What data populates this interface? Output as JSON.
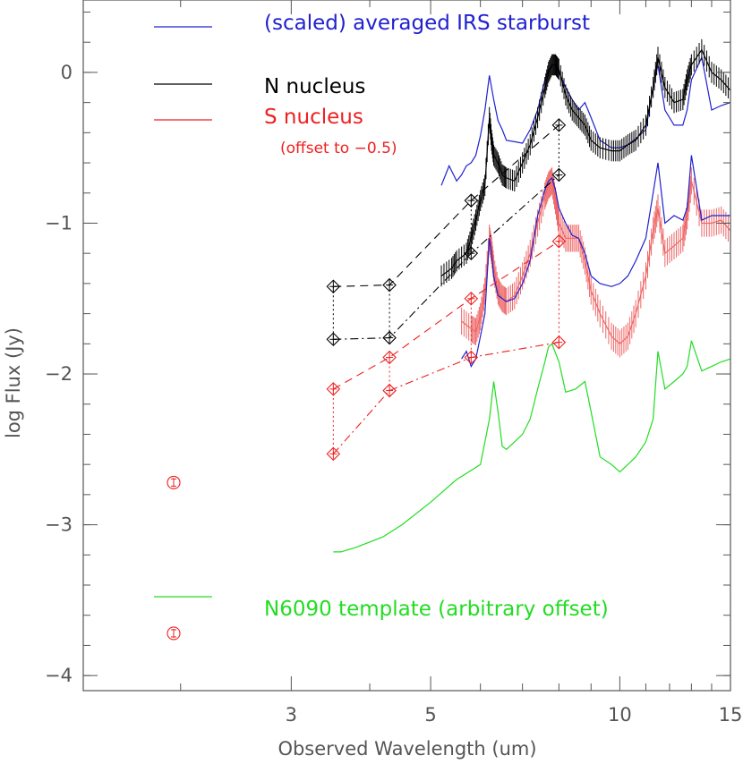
{
  "chart_data": {
    "type": "line",
    "xlabel": "Observed Wavelength (um)",
    "ylabel": "log Flux (Jy)",
    "x_scale": "log",
    "xlim": [
      1.4,
      15
    ],
    "ylim": [
      -4.1,
      0.48
    ],
    "x_ticks": [
      3,
      5,
      10,
      15
    ],
    "x_tick_labels": [
      "3",
      "5",
      "10",
      "15"
    ],
    "y_ticks": [
      0,
      -1,
      -2,
      -3,
      -4
    ],
    "y_tick_labels": [
      "0",
      "−1",
      "−2",
      "−3",
      "−4"
    ],
    "legend": [
      {
        "label": "(scaled) averaged IRS starburst",
        "color": "#2020d0"
      },
      {
        "label": "N nucleus",
        "color": "#000000"
      },
      {
        "label": "S nucleus",
        "color": "#ee2020"
      },
      {
        "label": "(offset to −0.5)",
        "color": "#ee2020"
      },
      {
        "label": "N6090 template (arbitrary offset)",
        "color": "#22dd22"
      }
    ],
    "series": [
      {
        "name": "(scaled) averaged IRS starburst",
        "color": "#2020d0",
        "x": [
          5.2,
          5.35,
          5.5,
          5.6,
          5.7,
          5.8,
          5.9,
          6.0,
          6.1,
          6.2,
          6.25,
          6.3,
          6.4,
          6.5,
          6.6,
          6.8,
          7.0,
          7.2,
          7.4,
          7.6,
          7.7,
          7.8,
          7.9,
          8.0,
          8.2,
          8.4,
          8.6,
          8.8,
          9.0,
          9.3,
          9.7,
          10.0,
          10.3,
          10.6,
          11.0,
          11.3,
          11.5,
          11.8,
          12.2,
          12.6,
          12.8,
          13.0,
          13.5,
          14.0,
          14.5,
          15.0
        ],
        "y": [
          -0.75,
          -0.62,
          -0.72,
          -0.68,
          -0.62,
          -0.6,
          -0.55,
          -0.42,
          -0.25,
          -0.02,
          -0.1,
          -0.18,
          -0.32,
          -0.38,
          -0.45,
          -0.46,
          -0.47,
          -0.38,
          -0.25,
          -0.05,
          0.02,
          0.05,
          0.05,
          0.0,
          -0.1,
          -0.18,
          -0.25,
          -0.2,
          -0.3,
          -0.45,
          -0.5,
          -0.5,
          -0.48,
          -0.44,
          -0.38,
          -0.1,
          0.05,
          -0.25,
          -0.35,
          -0.35,
          -0.25,
          -0.05,
          0.1,
          -0.25,
          -0.22,
          -0.2
        ]
      },
      {
        "name": "N nucleus",
        "color": "#000000",
        "x": [
          5.2,
          5.4,
          5.5,
          5.7,
          5.8,
          5.9,
          6.0,
          6.1,
          6.2,
          6.25,
          6.3,
          6.4,
          6.5,
          6.6,
          6.8,
          7.0,
          7.2,
          7.4,
          7.6,
          7.7,
          7.8,
          7.9,
          8.0,
          8.2,
          8.4,
          8.6,
          8.8,
          9.0,
          9.3,
          9.7,
          10.0,
          10.3,
          10.6,
          11.0,
          11.3,
          11.5,
          11.8,
          12.2,
          12.6,
          12.8,
          13.0,
          13.5,
          14.0,
          14.5,
          15.0
        ],
        "y": [
          -1.35,
          -1.3,
          -1.25,
          -1.2,
          -1.1,
          -0.98,
          -0.85,
          -0.75,
          -0.3,
          -0.45,
          -0.55,
          -0.6,
          -0.68,
          -0.7,
          -0.72,
          -0.6,
          -0.48,
          -0.3,
          -0.1,
          0.0,
          0.05,
          0.05,
          0.02,
          -0.15,
          -0.25,
          -0.3,
          -0.35,
          -0.45,
          -0.5,
          -0.52,
          -0.52,
          -0.48,
          -0.45,
          -0.35,
          -0.1,
          0.1,
          -0.1,
          -0.2,
          -0.18,
          -0.05,
          0.05,
          0.15,
          0.0,
          -0.05,
          -0.12
        ]
      },
      {
        "name": "S nucleus",
        "color": "#ee6666",
        "x": [
          5.6,
          5.8,
          5.9,
          6.0,
          6.1,
          6.2,
          6.25,
          6.3,
          6.4,
          6.5,
          6.6,
          6.8,
          7.0,
          7.2,
          7.4,
          7.6,
          7.7,
          7.8,
          7.9,
          8.0,
          8.2,
          8.4,
          8.6,
          8.8,
          9.0,
          9.3,
          9.7,
          10.0,
          10.3,
          10.6,
          11.0,
          11.3,
          11.5,
          11.8,
          12.2,
          12.6,
          12.8,
          13.0,
          13.5,
          14.0,
          14.5,
          15.0
        ],
        "y": [
          -1.65,
          -1.7,
          -1.72,
          -1.62,
          -1.45,
          -1.1,
          -1.18,
          -1.3,
          -1.45,
          -1.5,
          -1.52,
          -1.48,
          -1.35,
          -1.2,
          -1.0,
          -0.82,
          -0.75,
          -0.72,
          -0.85,
          -1.0,
          -1.1,
          -1.1,
          -1.1,
          -1.25,
          -1.45,
          -1.6,
          -1.75,
          -1.8,
          -1.75,
          -1.6,
          -1.35,
          -1.05,
          -0.9,
          -1.2,
          -1.15,
          -1.1,
          -0.95,
          -0.72,
          -1.0,
          -1.0,
          -0.98,
          -1.05
        ]
      },
      {
        "name": "(scaled) averaged IRS starburst",
        "color": "#2020d0",
        "x": [
          5.6,
          5.7,
          5.8,
          5.9,
          6.0,
          6.1,
          6.2,
          6.25,
          6.3,
          6.4,
          6.5,
          6.6,
          6.8,
          7.0,
          7.2,
          7.4,
          7.6,
          7.7,
          7.8,
          7.9,
          8.0,
          8.2,
          8.4,
          8.6,
          8.8,
          9.0,
          9.3,
          9.7,
          10.0,
          10.3,
          10.6,
          11.0,
          11.3,
          11.5,
          11.8,
          12.2,
          12.6,
          12.8,
          13.0,
          13.5,
          14.0,
          14.5,
          15.0
        ],
        "y": [
          -1.9,
          -1.85,
          -1.95,
          -1.9,
          -1.75,
          -1.6,
          -1.1,
          -1.2,
          -1.35,
          -1.48,
          -1.5,
          -1.52,
          -1.5,
          -1.4,
          -1.25,
          -0.95,
          -0.78,
          -0.72,
          -0.7,
          -0.78,
          -0.9,
          -1.0,
          -1.08,
          -1.1,
          -1.2,
          -1.35,
          -1.4,
          -1.42,
          -1.4,
          -1.35,
          -1.25,
          -1.1,
          -0.8,
          -0.6,
          -1.0,
          -0.95,
          -0.98,
          -0.9,
          -0.55,
          -0.98,
          -0.95,
          -0.95,
          -0.95
        ]
      },
      {
        "name": "N6090 template (arbitrary offset)",
        "color": "#22dd22",
        "x": [
          3.5,
          3.6,
          3.8,
          4.2,
          4.5,
          5.0,
          5.5,
          6.0,
          6.2,
          6.3,
          6.4,
          6.5,
          6.6,
          6.8,
          7.0,
          7.2,
          7.4,
          7.6,
          7.7,
          7.8,
          8.0,
          8.2,
          8.5,
          8.8,
          9.0,
          9.3,
          9.7,
          10.0,
          10.3,
          10.6,
          11.0,
          11.3,
          11.5,
          11.8,
          12.2,
          12.6,
          12.8,
          13.0,
          13.5,
          14.0,
          14.5,
          15.0
        ],
        "y": [
          -3.18,
          -3.18,
          -3.15,
          -3.08,
          -3.0,
          -2.85,
          -2.7,
          -2.6,
          -2.3,
          -2.05,
          -2.25,
          -2.48,
          -2.5,
          -2.45,
          -2.4,
          -2.3,
          -2.1,
          -1.92,
          -1.82,
          -1.8,
          -1.92,
          -2.12,
          -2.1,
          -2.05,
          -2.25,
          -2.55,
          -2.6,
          -2.65,
          -2.6,
          -2.55,
          -2.45,
          -2.3,
          -1.85,
          -2.1,
          -2.05,
          -2.0,
          -1.95,
          -1.78,
          -1.98,
          -1.95,
          -1.92,
          -1.9
        ]
      }
    ],
    "photometry": [
      {
        "color": "#000000",
        "linestyle": "dashed",
        "x": [
          3.5,
          4.3,
          5.8,
          8.0
        ],
        "y": [
          -1.42,
          -1.41,
          -0.85,
          -0.35
        ]
      },
      {
        "color": "#000000",
        "linestyle": "dashdot",
        "x": [
          3.5,
          4.3,
          5.8,
          8.0
        ],
        "y": [
          -1.77,
          -1.76,
          -1.2,
          -0.68
        ]
      },
      {
        "color": "#ee2020",
        "linestyle": "dashed",
        "x": [
          3.5,
          4.3,
          5.8,
          8.0
        ],
        "y": [
          -2.1,
          -1.89,
          -1.5,
          -1.12
        ]
      },
      {
        "color": "#ee2020",
        "linestyle": "dashdot",
        "x": [
          3.5,
          4.3,
          5.8,
          8.0
        ],
        "y": [
          -2.53,
          -2.11,
          -1.89,
          -1.79
        ]
      }
    ],
    "upper_points": [
      {
        "color": "#ee2020",
        "x": 1.95,
        "y": -2.72
      },
      {
        "color": "#ee2020",
        "x": 1.95,
        "y": -3.72
      }
    ]
  }
}
